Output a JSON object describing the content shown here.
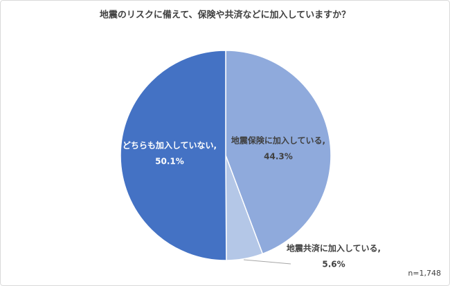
{
  "chart_data": {
    "type": "pie",
    "title": "地震のリスクに備えて、保険や共済などに加入していますか？",
    "categories": [
      "地震保険に加入している,",
      "地震共済に加入している,",
      "どちらも加入していない,"
    ],
    "values": [
      44.3,
      5.6,
      50.1
    ],
    "value_labels": [
      "44.3%",
      "5.6%",
      "50.1%"
    ],
    "colors": [
      "#8faadc",
      "#b4c7e7",
      "#4472c4"
    ],
    "note": "n=1,748"
  }
}
